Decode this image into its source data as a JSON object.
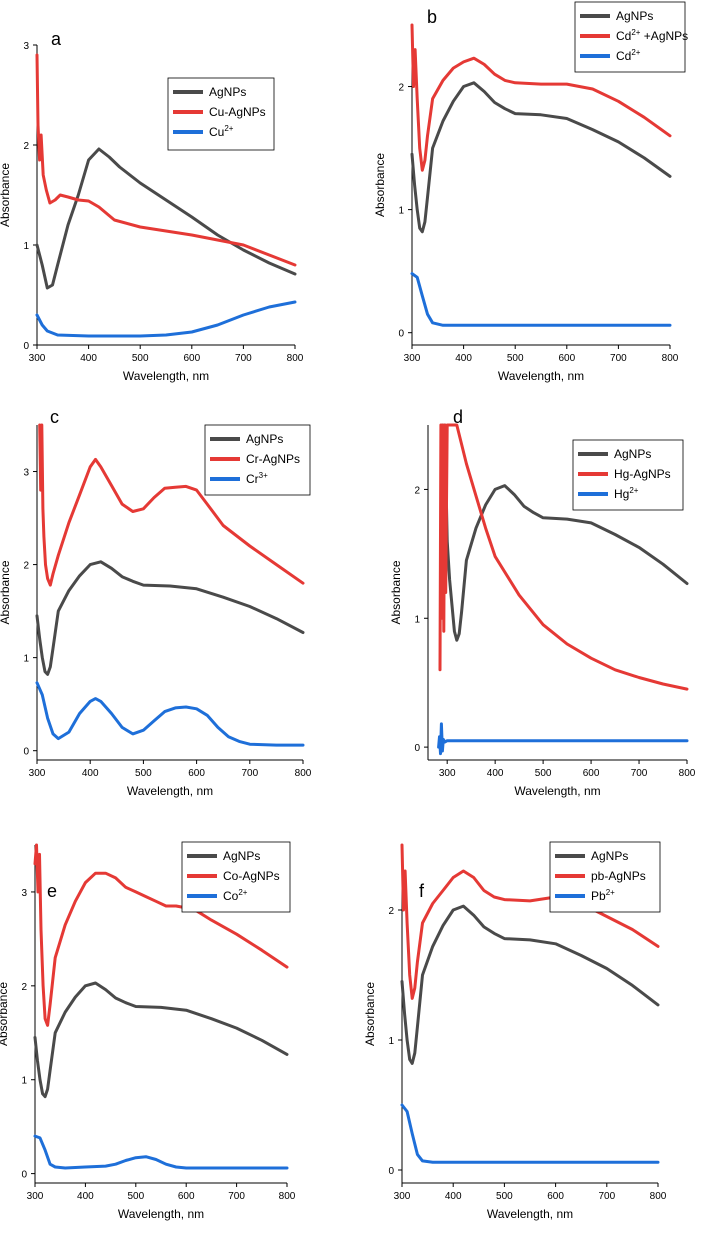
{
  "chart_data": [
    {
      "id": "a",
      "type": "line",
      "title": "a",
      "xlabel": "Wavelength, nm",
      "ylabel": "Absorbance",
      "xlim": [
        300,
        800
      ],
      "ylim": [
        0,
        3
      ],
      "xticks": [
        300,
        400,
        500,
        600,
        700,
        800
      ],
      "yticks": [
        0,
        1,
        2,
        3
      ],
      "legend": [
        {
          "label": "AgNPs",
          "sup": "",
          "color": "#4a4a4a"
        },
        {
          "label": "Cu-AgNPs",
          "sup": "",
          "color": "#e53935"
        },
        {
          "label": "Cu",
          "sup": "2+",
          "color": "#1e6fd9"
        }
      ],
      "series": [
        {
          "name": "AgNPs",
          "color": "#4a4a4a",
          "x": [
            300,
            310,
            320,
            330,
            340,
            360,
            380,
            400,
            420,
            440,
            460,
            500,
            550,
            600,
            650,
            700,
            750,
            800
          ],
          "y": [
            1.0,
            0.8,
            0.57,
            0.6,
            0.8,
            1.2,
            1.5,
            1.85,
            1.96,
            1.88,
            1.78,
            1.62,
            1.45,
            1.28,
            1.1,
            0.95,
            0.82,
            0.71
          ]
        },
        {
          "name": "Cu-AgNPs",
          "color": "#e53935",
          "x": [
            300,
            302,
            305,
            308,
            312,
            318,
            325,
            335,
            345,
            360,
            380,
            400,
            420,
            450,
            500,
            550,
            600,
            650,
            700,
            750,
            800
          ],
          "y": [
            2.9,
            2.2,
            1.85,
            2.1,
            1.7,
            1.55,
            1.42,
            1.45,
            1.5,
            1.48,
            1.45,
            1.44,
            1.38,
            1.25,
            1.18,
            1.14,
            1.1,
            1.05,
            1.0,
            0.9,
            0.8
          ]
        },
        {
          "name": "Cu2+",
          "color": "#1e6fd9",
          "x": [
            300,
            310,
            320,
            340,
            400,
            450,
            500,
            550,
            600,
            650,
            700,
            750,
            800
          ],
          "y": [
            0.3,
            0.2,
            0.14,
            0.1,
            0.09,
            0.09,
            0.09,
            0.1,
            0.13,
            0.2,
            0.3,
            0.38,
            0.43
          ]
        }
      ]
    },
    {
      "id": "b",
      "type": "line",
      "title": "b",
      "xlabel": "Wavelength, nm",
      "ylabel": "Absorbance",
      "xlim": [
        300,
        800
      ],
      "ylim": [
        -0.1,
        2.5
      ],
      "xticks": [
        300,
        400,
        500,
        600,
        700,
        800
      ],
      "yticks": [
        0,
        1,
        2
      ],
      "legend": [
        {
          "label": "AgNPs",
          "sup": "",
          "color": "#4a4a4a"
        },
        {
          "label": "Cd",
          "sup": "2+",
          "suffix": " +AgNPs",
          "color": "#e53935"
        },
        {
          "label": "Cd",
          "sup": "2+",
          "color": "#1e6fd9"
        }
      ],
      "series": [
        {
          "name": "AgNPs",
          "color": "#4a4a4a",
          "x": [
            300,
            305,
            310,
            315,
            320,
            325,
            330,
            340,
            360,
            380,
            400,
            420,
            440,
            460,
            480,
            500,
            550,
            600,
            650,
            700,
            750,
            800
          ],
          "y": [
            1.45,
            1.2,
            1.0,
            0.85,
            0.82,
            0.9,
            1.1,
            1.5,
            1.72,
            1.88,
            2.0,
            2.03,
            1.96,
            1.87,
            1.82,
            1.78,
            1.77,
            1.74,
            1.65,
            1.55,
            1.42,
            1.27
          ]
        },
        {
          "name": "Cd2+ +AgNPs",
          "color": "#e53935",
          "x": [
            300,
            303,
            306,
            310,
            315,
            320,
            325,
            330,
            340,
            360,
            380,
            400,
            420,
            440,
            460,
            480,
            500,
            550,
            600,
            650,
            700,
            750,
            800
          ],
          "y": [
            2.5,
            2.0,
            2.3,
            1.9,
            1.5,
            1.32,
            1.4,
            1.6,
            1.9,
            2.05,
            2.15,
            2.2,
            2.23,
            2.18,
            2.1,
            2.05,
            2.03,
            2.02,
            2.02,
            1.98,
            1.88,
            1.75,
            1.6
          ]
        },
        {
          "name": "Cd2+",
          "color": "#1e6fd9",
          "x": [
            300,
            310,
            320,
            330,
            340,
            360,
            400,
            500,
            600,
            700,
            800
          ],
          "y": [
            0.48,
            0.45,
            0.3,
            0.15,
            0.08,
            0.06,
            0.06,
            0.06,
            0.06,
            0.06,
            0.06
          ]
        }
      ]
    },
    {
      "id": "c",
      "type": "line",
      "title": "c",
      "xlabel": "Wavelength, nm",
      "ylabel": "Absorbance",
      "xlim": [
        300,
        800
      ],
      "ylim": [
        -0.1,
        3.5
      ],
      "xticks": [
        300,
        400,
        500,
        600,
        700,
        800
      ],
      "yticks": [
        0,
        1,
        2,
        3
      ],
      "legend": [
        {
          "label": "AgNPs",
          "sup": "",
          "color": "#4a4a4a"
        },
        {
          "label": "Cr-AgNPs",
          "sup": "",
          "color": "#e53935"
        },
        {
          "label": "Cr",
          "sup": "3+",
          "color": "#1e6fd9"
        }
      ],
      "series": [
        {
          "name": "AgNPs",
          "color": "#4a4a4a",
          "x": [
            300,
            305,
            310,
            315,
            320,
            325,
            330,
            340,
            360,
            380,
            400,
            420,
            440,
            460,
            480,
            500,
            550,
            600,
            650,
            700,
            750,
            800
          ],
          "y": [
            1.45,
            1.2,
            1.0,
            0.85,
            0.82,
            0.9,
            1.1,
            1.5,
            1.72,
            1.88,
            2.0,
            2.03,
            1.96,
            1.87,
            1.82,
            1.78,
            1.77,
            1.74,
            1.65,
            1.55,
            1.42,
            1.27
          ]
        },
        {
          "name": "Cr-AgNPs",
          "color": "#e53935",
          "x": [
            305,
            307,
            309,
            311,
            313,
            316,
            320,
            325,
            330,
            340,
            360,
            380,
            400,
            410,
            420,
            440,
            460,
            480,
            500,
            520,
            540,
            560,
            580,
            600,
            620,
            650,
            700,
            750,
            800
          ],
          "y": [
            3.5,
            2.8,
            3.5,
            2.6,
            2.3,
            2.0,
            1.85,
            1.78,
            1.9,
            2.1,
            2.45,
            2.75,
            3.05,
            3.13,
            3.05,
            2.85,
            2.65,
            2.57,
            2.6,
            2.72,
            2.82,
            2.83,
            2.84,
            2.8,
            2.65,
            2.42,
            2.2,
            2.0,
            1.8
          ]
        },
        {
          "name": "Cr3+",
          "color": "#1e6fd9",
          "x": [
            300,
            310,
            320,
            330,
            340,
            360,
            380,
            400,
            410,
            420,
            440,
            460,
            480,
            500,
            520,
            540,
            560,
            580,
            600,
            620,
            640,
            660,
            680,
            700,
            750,
            800
          ],
          "y": [
            0.73,
            0.6,
            0.35,
            0.18,
            0.13,
            0.2,
            0.4,
            0.53,
            0.56,
            0.53,
            0.4,
            0.25,
            0.18,
            0.22,
            0.32,
            0.42,
            0.46,
            0.47,
            0.45,
            0.38,
            0.25,
            0.15,
            0.1,
            0.07,
            0.06,
            0.06
          ]
        }
      ]
    },
    {
      "id": "d",
      "type": "line",
      "title": "d",
      "xlabel": "Wavelength, nm",
      "ylabel": "Absorbance",
      "xlim": [
        260,
        800
      ],
      "ylim": [
        -0.1,
        2.5
      ],
      "xticks": [
        300,
        400,
        500,
        600,
        700,
        800
      ],
      "yticks": [
        0,
        1,
        2
      ],
      "legend": [
        {
          "label": "AgNPs",
          "sup": "",
          "color": "#4a4a4a"
        },
        {
          "label": "Hg-AgNPs",
          "sup": "",
          "color": "#e53935"
        },
        {
          "label": "Hg",
          "sup": "2+",
          "color": "#1e6fd9"
        }
      ],
      "series": [
        {
          "name": "AgNPs",
          "color": "#4a4a4a",
          "x": [
            290,
            292,
            295,
            300,
            305,
            310,
            315,
            320,
            325,
            330,
            340,
            360,
            380,
            400,
            420,
            440,
            460,
            480,
            500,
            550,
            600,
            650,
            700,
            750,
            800
          ],
          "y": [
            2.5,
            1.6,
            2.5,
            1.6,
            1.3,
            1.1,
            0.9,
            0.83,
            0.88,
            1.05,
            1.45,
            1.7,
            1.88,
            2.0,
            2.03,
            1.96,
            1.87,
            1.82,
            1.78,
            1.77,
            1.74,
            1.65,
            1.55,
            1.42,
            1.27
          ]
        },
        {
          "name": "Hg-AgNPs",
          "color": "#e53935",
          "x": [
            285,
            287,
            289,
            291,
            293,
            295,
            297,
            300,
            305,
            310,
            320,
            330,
            340,
            360,
            380,
            400,
            450,
            500,
            550,
            600,
            650,
            700,
            750,
            800
          ],
          "y": [
            0.6,
            2.5,
            1.0,
            2.5,
            0.9,
            2.5,
            1.2,
            2.5,
            2.5,
            2.5,
            2.5,
            2.35,
            2.2,
            1.95,
            1.7,
            1.48,
            1.18,
            0.95,
            0.8,
            0.69,
            0.6,
            0.54,
            0.49,
            0.45
          ]
        },
        {
          "name": "Hg2+",
          "color": "#1e6fd9",
          "x": [
            282,
            284,
            286,
            288,
            290,
            292,
            295,
            300,
            320,
            400,
            500,
            600,
            700,
            800
          ],
          "y": [
            0.0,
            0.08,
            -0.05,
            0.18,
            -0.03,
            0.06,
            0.04,
            0.05,
            0.05,
            0.05,
            0.05,
            0.05,
            0.05,
            0.05
          ]
        }
      ]
    },
    {
      "id": "e",
      "type": "line",
      "title": "e",
      "xlabel": "Wavelength, nm",
      "ylabel": "Absorbance",
      "xlim": [
        300,
        800
      ],
      "ylim": [
        -0.1,
        3.5
      ],
      "xticks": [
        300,
        400,
        500,
        600,
        700,
        800
      ],
      "yticks": [
        0,
        1,
        2,
        3
      ],
      "legend": [
        {
          "label": "AgNPs",
          "sup": "",
          "color": "#4a4a4a"
        },
        {
          "label": "Co-AgNPs",
          "sup": "",
          "color": "#e53935"
        },
        {
          "label": "Co",
          "sup": "2+",
          "color": "#1e6fd9"
        }
      ],
      "series": [
        {
          "name": "AgNPs",
          "color": "#4a4a4a",
          "x": [
            300,
            305,
            310,
            315,
            320,
            325,
            330,
            340,
            360,
            380,
            400,
            420,
            440,
            460,
            480,
            500,
            550,
            600,
            650,
            700,
            750,
            800
          ],
          "y": [
            1.45,
            1.2,
            1.0,
            0.85,
            0.82,
            0.9,
            1.1,
            1.5,
            1.72,
            1.88,
            2.0,
            2.03,
            1.96,
            1.87,
            1.82,
            1.78,
            1.77,
            1.74,
            1.65,
            1.55,
            1.42,
            1.27
          ]
        },
        {
          "name": "Co-AgNPs",
          "color": "#e53935",
          "x": [
            300,
            303,
            306,
            309,
            312,
            316,
            320,
            325,
            330,
            340,
            360,
            380,
            400,
            420,
            440,
            460,
            480,
            500,
            520,
            540,
            560,
            580,
            600,
            620,
            650,
            700,
            750,
            800
          ],
          "y": [
            3.3,
            3.5,
            3.0,
            3.4,
            2.6,
            2.0,
            1.65,
            1.58,
            1.8,
            2.3,
            2.65,
            2.9,
            3.1,
            3.2,
            3.2,
            3.15,
            3.05,
            3.0,
            2.95,
            2.9,
            2.85,
            2.85,
            2.83,
            2.8,
            2.7,
            2.55,
            2.38,
            2.2
          ]
        },
        {
          "name": "Co2+",
          "color": "#1e6fd9",
          "x": [
            300,
            310,
            320,
            330,
            340,
            360,
            400,
            440,
            460,
            480,
            500,
            520,
            540,
            560,
            580,
            600,
            700,
            800
          ],
          "y": [
            0.4,
            0.38,
            0.25,
            0.1,
            0.07,
            0.06,
            0.07,
            0.08,
            0.1,
            0.14,
            0.17,
            0.18,
            0.15,
            0.1,
            0.07,
            0.06,
            0.06,
            0.06
          ]
        }
      ]
    },
    {
      "id": "f",
      "type": "line",
      "title": "f",
      "xlabel": "Wavelength, nm",
      "ylabel": "Absorbance",
      "xlim": [
        300,
        800
      ],
      "ylim": [
        -0.1,
        2.5
      ],
      "xticks": [
        300,
        400,
        500,
        600,
        700,
        800
      ],
      "yticks": [
        0,
        1,
        2
      ],
      "legend": [
        {
          "label": "AgNPs",
          "sup": "",
          "color": "#4a4a4a"
        },
        {
          "label": "pb-AgNPs",
          "sup": "",
          "color": "#e53935"
        },
        {
          "label": "Pb",
          "sup": "2+",
          "color": "#1e6fd9"
        }
      ],
      "series": [
        {
          "name": "AgNPs",
          "color": "#4a4a4a",
          "x": [
            300,
            305,
            310,
            315,
            320,
            325,
            330,
            340,
            360,
            380,
            400,
            420,
            440,
            460,
            480,
            500,
            550,
            600,
            650,
            700,
            750,
            800
          ],
          "y": [
            1.45,
            1.2,
            1.0,
            0.85,
            0.82,
            0.9,
            1.1,
            1.5,
            1.72,
            1.88,
            2.0,
            2.03,
            1.96,
            1.87,
            1.82,
            1.78,
            1.77,
            1.74,
            1.65,
            1.55,
            1.42,
            1.27
          ]
        },
        {
          "name": "pb-AgNPs",
          "color": "#e53935",
          "x": [
            300,
            303,
            306,
            310,
            315,
            320,
            325,
            330,
            340,
            360,
            380,
            400,
            420,
            440,
            460,
            480,
            500,
            550,
            600,
            650,
            700,
            750,
            800
          ],
          "y": [
            2.5,
            2.0,
            2.3,
            1.9,
            1.5,
            1.32,
            1.4,
            1.6,
            1.9,
            2.05,
            2.15,
            2.25,
            2.3,
            2.25,
            2.15,
            2.1,
            2.08,
            2.07,
            2.1,
            2.05,
            1.95,
            1.85,
            1.72
          ]
        },
        {
          "name": "Pb2+",
          "color": "#1e6fd9",
          "x": [
            300,
            310,
            320,
            330,
            340,
            360,
            400,
            500,
            600,
            700,
            800
          ],
          "y": [
            0.5,
            0.45,
            0.28,
            0.12,
            0.07,
            0.06,
            0.06,
            0.06,
            0.06,
            0.06,
            0.06
          ]
        }
      ]
    }
  ]
}
